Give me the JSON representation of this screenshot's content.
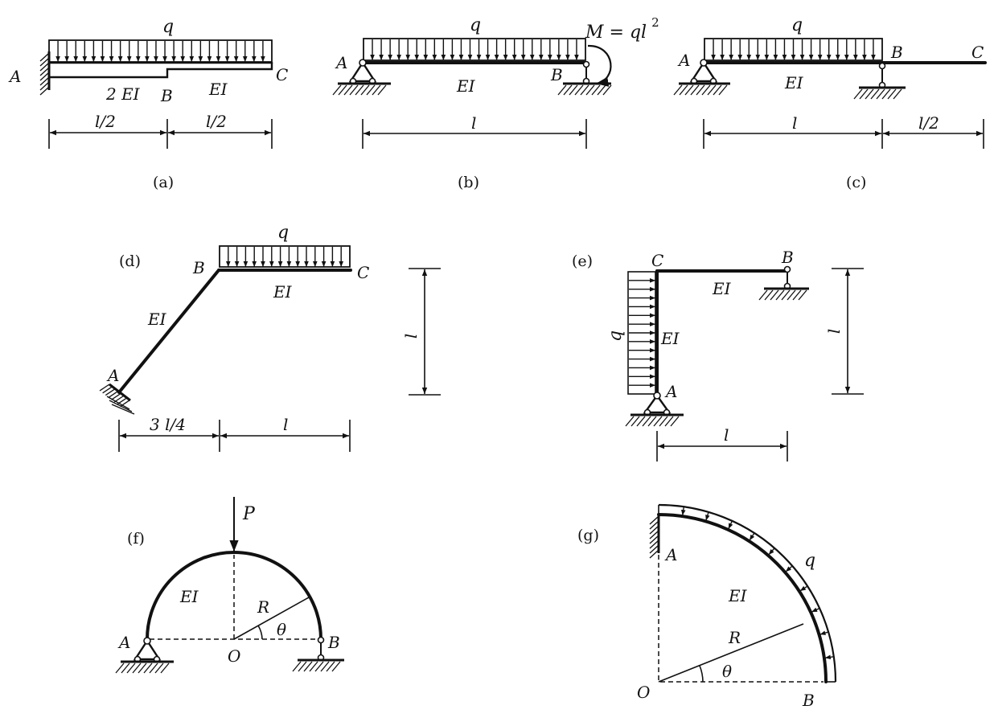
{
  "diagrams": {
    "a": {
      "caption": "(a)",
      "load": "q",
      "A": "A",
      "B": "B",
      "C": "C",
      "EI_left": "2 EI",
      "EI_right": "EI",
      "dim1": "l/2",
      "dim2": "l/2"
    },
    "b": {
      "caption": "(b)",
      "load": "q",
      "moment": "M = ql",
      "moment_exp": "2",
      "A": "A",
      "B": "B",
      "EI": "EI",
      "dim": "l"
    },
    "c": {
      "caption": "(c)",
      "load": "q",
      "A": "A",
      "B": "B",
      "C": "C",
      "EI": "EI",
      "dim1": "l",
      "dim2": "l/2"
    },
    "d": {
      "caption": "(d)",
      "load": "q",
      "A": "A",
      "B": "B",
      "C": "C",
      "EI_inclined": "EI",
      "EI_horizontal": "EI",
      "dim_h1": "3 l/4",
      "dim_h2": "l",
      "dim_v": "l"
    },
    "e": {
      "caption": "(e)",
      "load": "q",
      "A": "A",
      "B": "B",
      "C": "C",
      "EI_column": "EI",
      "EI_beam": "EI",
      "dim_h": "l",
      "dim_v": "l"
    },
    "f": {
      "caption": "(f)",
      "force": "P",
      "A": "A",
      "B": "B",
      "O": "O",
      "EI": "EI",
      "radius": "R",
      "angle": "θ"
    },
    "g": {
      "caption": "(g)",
      "load": "q",
      "A": "A",
      "B": "B",
      "O": "O",
      "EI": "EI",
      "radius": "R",
      "angle": "θ"
    }
  }
}
